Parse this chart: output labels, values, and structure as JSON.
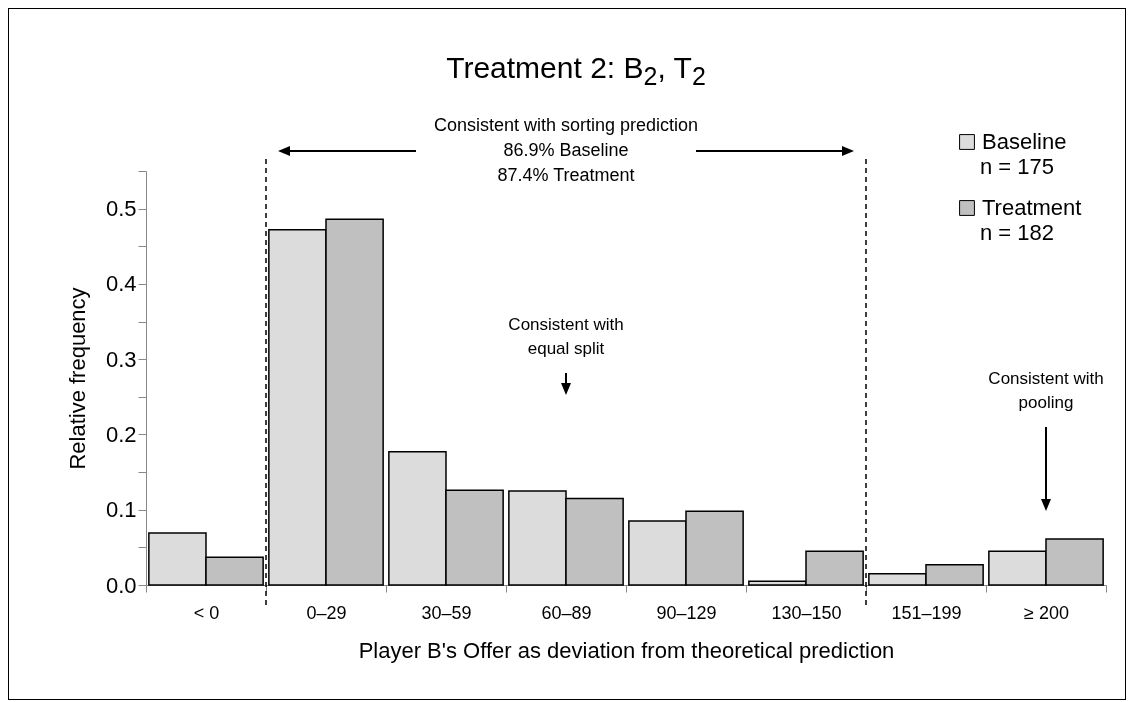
{
  "chart_data": {
    "type": "bar",
    "title": "Treatment 2: B$_{2}$, T$_{2}$",
    "xlabel": "Player B's Offer as deviation from theoretical prediction",
    "ylabel": "Relative frequency",
    "categories": [
      "< 0",
      "0–29",
      "30–59",
      "60–89",
      "90–129",
      "130–150",
      "151–199",
      "≥ 200"
    ],
    "series": [
      {
        "name": "Baseline",
        "color": "#dcdcdc",
        "values": [
          0.069,
          0.472,
          0.177,
          0.125,
          0.085,
          0.005,
          0.015,
          0.045
        ]
      },
      {
        "name": "Treatment",
        "color": "#c0c0c0",
        "values": [
          0.037,
          0.486,
          0.126,
          0.115,
          0.098,
          0.045,
          0.027,
          0.061
        ]
      }
    ],
    "ylim": [
      0,
      0.55
    ],
    "yticks": [
      {
        "value": 0,
        "label": "0.0"
      },
      {
        "value": 0.05,
        "label": null
      },
      {
        "value": 0.1,
        "label": "0.1"
      },
      {
        "value": 0.15,
        "label": null
      },
      {
        "value": 0.2,
        "label": "0.2"
      },
      {
        "value": 0.25,
        "label": null
      },
      {
        "value": 0.3,
        "label": "0.3"
      },
      {
        "value": 0.35,
        "label": null
      },
      {
        "value": 0.4,
        "label": "0.4"
      },
      {
        "value": 0.45,
        "label": null
      },
      {
        "value": 0.5,
        "label": "0.5"
      },
      {
        "value": 0.55,
        "label": null
      }
    ],
    "legend": "top right",
    "annotations": [
      "n = 175",
      "n = 182",
      "Consistent with sorting prediction\n86.9% Baseline\n87.4% Treatment",
      "Consistent with\nequal split",
      "Consistent with\npooling"
    ]
  }
}
